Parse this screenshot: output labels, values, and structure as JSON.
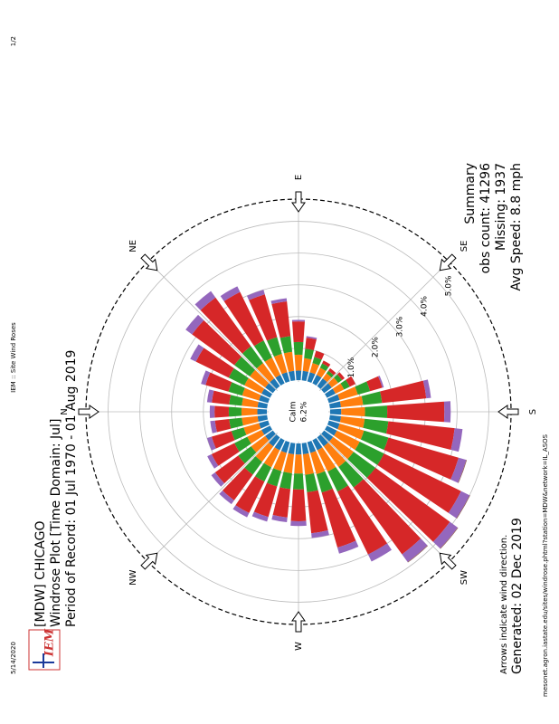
{
  "printed": {
    "date": "5/14/2020",
    "title": "IEM :: Site Wind Roses",
    "page": "1/2",
    "url": "mesonet.agron.iastate.edu/sites/windrose.phtml?station=MDW&network=IL_ASOS"
  },
  "logo": "IEM",
  "chart_data": {
    "type": "windrose",
    "title": [
      "[MDW] CHICAGO",
      "Windrose Plot [Time Domain: Jul]",
      "Period of Record: 01 Jul 1970 - 01 Aug 2019"
    ],
    "summary": [
      "Summary",
      "obs count: 41296",
      "Missing: 1937",
      "Avg Speed: 8.8 mph"
    ],
    "annotations": [
      "Arrows indicate wind direction.",
      "Generated: 02 Dec 2019"
    ],
    "calm": {
      "name": "Calm",
      "value": 6.2,
      "value_label": "6.2%"
    },
    "x": [
      0,
      10,
      20,
      30,
      40,
      50,
      60,
      70,
      80,
      90,
      100,
      110,
      120,
      130,
      140,
      150,
      160,
      170,
      180,
      190,
      200,
      210,
      220,
      230,
      240,
      250,
      260,
      270,
      280,
      290,
      300,
      310,
      320,
      330,
      340,
      350
    ],
    "xlim": [
      0,
      360
    ],
    "xticks": [
      {
        "value": 0,
        "label": "N"
      },
      {
        "value": 45,
        "label": "NE"
      },
      {
        "value": 90,
        "label": "E"
      },
      {
        "value": 135,
        "label": "SE"
      },
      {
        "value": 180,
        "label": "S"
      },
      {
        "value": 225,
        "label": "SW"
      },
      {
        "value": 270,
        "label": "W"
      },
      {
        "value": 315,
        "label": "NW"
      }
    ],
    "ylim": [
      0,
      5.7
    ],
    "yticks": [
      {
        "value": 1,
        "label": "1.0%"
      },
      {
        "value": 2,
        "label": "2.0%"
      },
      {
        "value": 3,
        "label": "3.0%"
      },
      {
        "value": 4,
        "label": "4.0%"
      },
      {
        "value": 5,
        "label": "5.0%"
      }
    ],
    "series": [
      {
        "color": "#1f77b4",
        "values": [
          0.3,
          0.3,
          0.3,
          0.3,
          0.3,
          0.3,
          0.3,
          0.3,
          0.3,
          0.3,
          0.3,
          0.3,
          0.3,
          0.3,
          0.3,
          0.3,
          0.35,
          0.35,
          0.35,
          0.35,
          0.35,
          0.35,
          0.35,
          0.35,
          0.35,
          0.35,
          0.35,
          0.35,
          0.35,
          0.35,
          0.35,
          0.35,
          0.3,
          0.3,
          0.3,
          0.3
        ]
      },
      {
        "color": "#ff7f0e",
        "values": [
          0.5,
          0.5,
          0.55,
          0.6,
          0.6,
          0.6,
          0.6,
          0.6,
          0.6,
          0.5,
          0.4,
          0.3,
          0.25,
          0.2,
          0.25,
          0.3,
          0.6,
          0.7,
          0.75,
          0.75,
          0.8,
          0.8,
          0.8,
          0.8,
          0.75,
          0.7,
          0.65,
          0.6,
          0.6,
          0.6,
          0.6,
          0.6,
          0.55,
          0.5,
          0.5,
          0.5
        ]
      },
      {
        "color": "#2ca02c",
        "values": [
          0.4,
          0.4,
          0.45,
          0.55,
          0.6,
          0.65,
          0.6,
          0.55,
          0.5,
          0.4,
          0.3,
          0.2,
          0.15,
          0.1,
          0.15,
          0.2,
          0.4,
          0.6,
          0.7,
          0.75,
          0.8,
          0.85,
          0.85,
          0.8,
          0.7,
          0.6,
          0.55,
          0.5,
          0.5,
          0.5,
          0.5,
          0.5,
          0.5,
          0.45,
          0.4,
          0.4
        ]
      },
      {
        "color": "#d62728",
        "values": [
          0.45,
          0.55,
          0.75,
          1.15,
          1.65,
          1.9,
          1.7,
          1.4,
          1.1,
          0.65,
          0.35,
          0.2,
          0.1,
          0.1,
          0.1,
          0.2,
          0.4,
          1.4,
          1.8,
          2.1,
          2.3,
          2.7,
          2.9,
          2.6,
          2.2,
          1.8,
          1.3,
          1.0,
          0.9,
          1.0,
          1.1,
          1.0,
          0.9,
          0.8,
          0.65,
          0.45
        ]
      },
      {
        "color": "#9467bd",
        "values": [
          0.15,
          0.15,
          0.15,
          0.2,
          0.25,
          0.25,
          0.2,
          0.15,
          0.1,
          0.05,
          0.05,
          0,
          0,
          0,
          0,
          0,
          0.05,
          0.15,
          0.2,
          0.25,
          0.25,
          0.3,
          0.3,
          0.3,
          0.25,
          0.2,
          0.15,
          0.15,
          0.15,
          0.15,
          0.15,
          0.15,
          0.15,
          0.15,
          0.15,
          0.15
        ]
      },
      {
        "color": "#8c564b",
        "values": [
          0,
          0,
          0,
          0,
          0,
          0,
          0,
          0,
          0,
          0,
          0,
          0,
          0,
          0,
          0,
          0,
          0,
          0,
          0,
          0,
          0.02,
          0.02,
          0.02,
          0.02,
          0,
          0,
          0,
          0,
          0,
          0,
          0,
          0,
          0,
          0,
          0,
          0
        ]
      }
    ]
  }
}
